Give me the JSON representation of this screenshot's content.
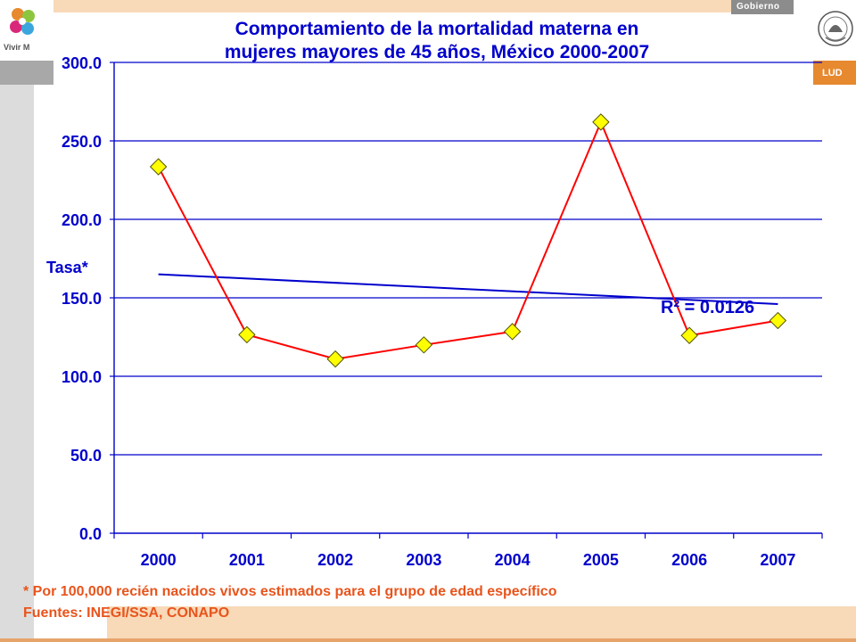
{
  "header": {
    "left_logo_text": "Vivir M",
    "gov_label": "Gobierno",
    "salud_label": "LUD"
  },
  "chart_data": {
    "type": "line",
    "title_line1": "Comportamiento de la mortalidad materna en",
    "title_line2": "mujeres mayores de 45 años, México 2000-2007",
    "ylabel": "Tasa*",
    "categories": [
      "2000",
      "2001",
      "2002",
      "2003",
      "2004",
      "2005",
      "2006",
      "2007"
    ],
    "series": [
      {
        "values": [
          233.5,
          126.5,
          111.0,
          120.0,
          128.5,
          262.0,
          126.0,
          135.5
        ],
        "color": "#ff0000",
        "marker_color": "#ffff00"
      }
    ],
    "trendline": {
      "start": 165.0,
      "end": 146.0,
      "color": "#0000cc"
    },
    "r2_label": "R² = 0.0126",
    "ylim": [
      0,
      300
    ],
    "yticks": [
      "0.0",
      "50.0",
      "100.0",
      "150.0",
      "200.0",
      "250.0",
      "300.0"
    ],
    "grid": true,
    "axis_color": "#0000cc"
  },
  "footnote": {
    "line1": "* Por 100,000 recién nacidos vivos estimados para el grupo de edad específico",
    "line2": "Fuentes: INEGI/SSA, CONAPO"
  }
}
